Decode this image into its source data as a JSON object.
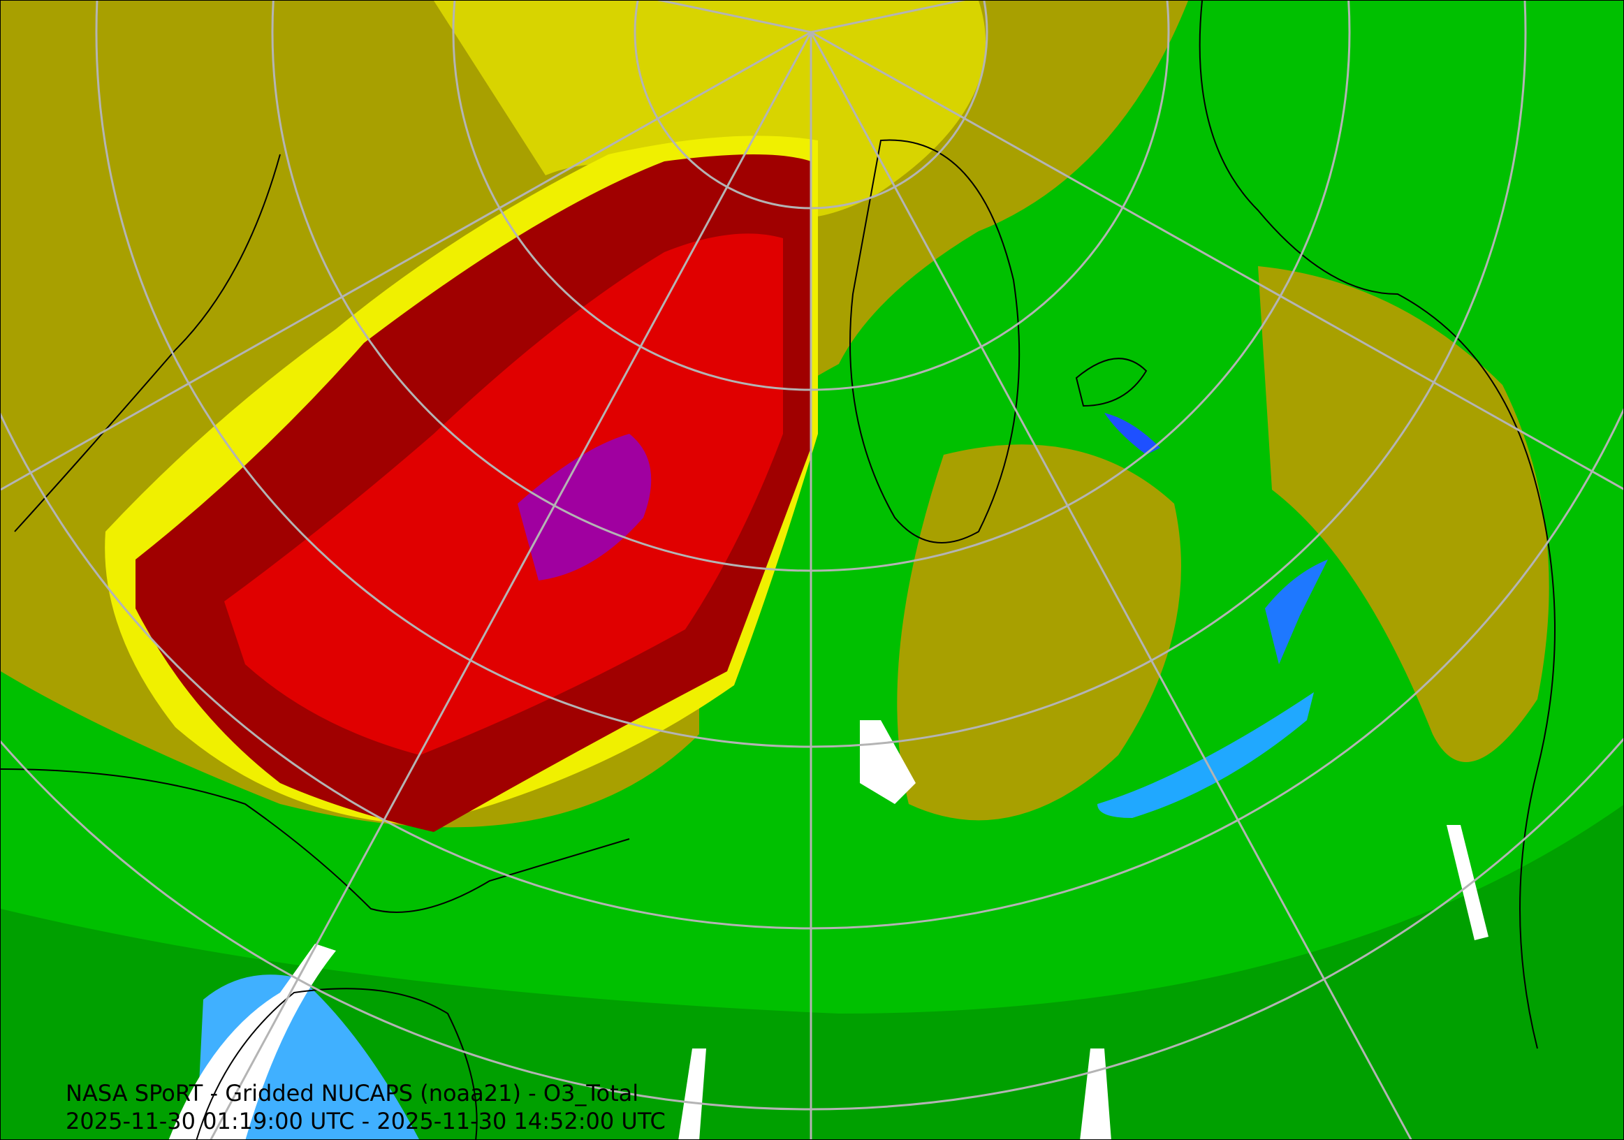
{
  "map": {
    "title_line": "NASA SPoRT - Gridded NUCAPS (noaa21) - O3_Total",
    "time_range_line": "2025-11-30 01:19:00 UTC - 2025-11-30 14:52:00 UTC",
    "projection": "north-polar-stereographic",
    "colors": {
      "low": "#00b4ff",
      "green": "#00c800",
      "dark_green": "#009600",
      "olive": "#a8a000",
      "yellow": "#f0f000",
      "dark_red": "#960000",
      "red": "#e00000",
      "purple": "#a000a0",
      "missing": "#ffffff",
      "graticule": "#b4b4b4",
      "coastline": "#000000"
    }
  }
}
